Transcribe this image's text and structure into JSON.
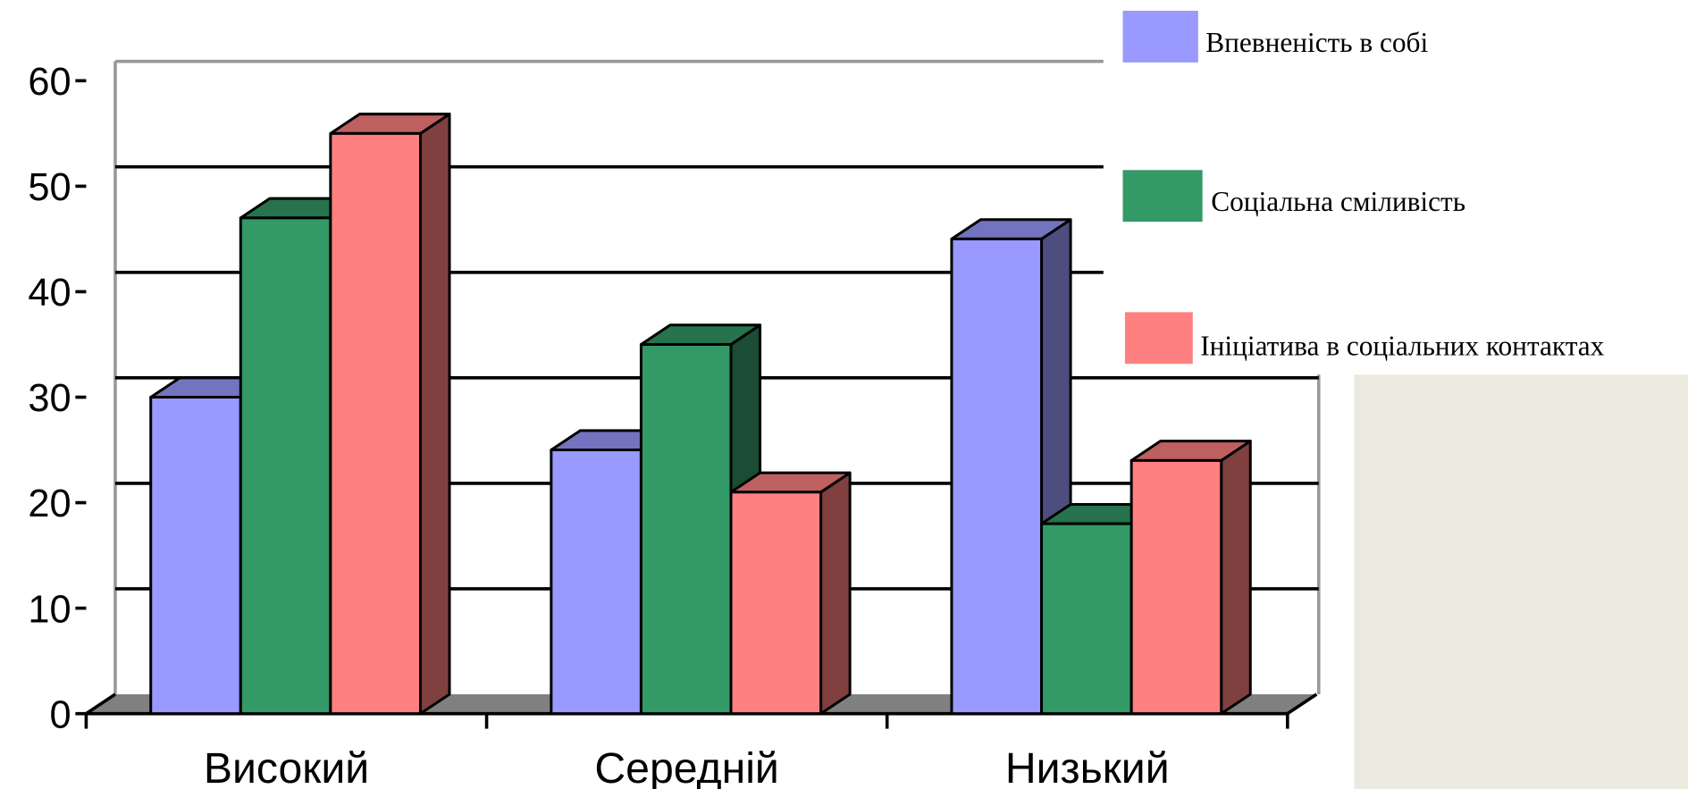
{
  "chart_data": {
    "type": "bar3d",
    "categories": [
      "Високий",
      "Середній",
      "Низький"
    ],
    "series": [
      {
        "name": "Впевненість в собі",
        "color": "#9999ff",
        "values": [
          30,
          25,
          45
        ]
      },
      {
        "name": "Соціальна сміливість",
        "color": "#339966",
        "values": [
          47,
          35,
          18
        ]
      },
      {
        "name": "Ініціатива в соціальних контактах",
        "color": "#ff8080",
        "values": [
          55,
          21,
          24
        ]
      }
    ],
    "ylim": [
      0,
      60
    ],
    "yticks": [
      0,
      10,
      20,
      30,
      40,
      50,
      60
    ],
    "grid": true,
    "legend": "right"
  }
}
